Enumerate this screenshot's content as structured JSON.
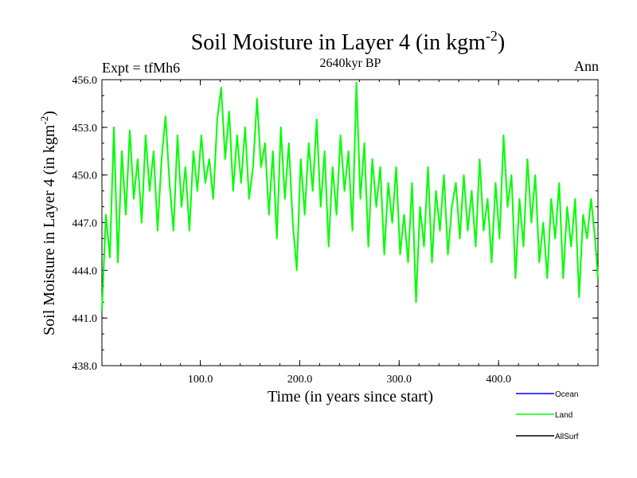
{
  "chart_data": {
    "type": "line",
    "title_main": "Soil Moisture in Layer 4 (in kgm",
    "title_exp": "-2",
    "title_close": ")",
    "subtitle_left": "Expt = tfMh6",
    "subtitle_center": "2640kyr BP",
    "subtitle_right": "Ann",
    "xlabel": "Time (in years since start)",
    "ylabel_main": "Soil Moisture in Layer 4 (in kgm",
    "ylabel_exp": "-2",
    "ylabel_close": ")",
    "xlim": [
      1,
      500
    ],
    "ylim": [
      438.0,
      456.0
    ],
    "xticks": [
      100,
      200,
      300,
      400
    ],
    "xtick_labels": [
      "100.0",
      "200.0",
      "300.0",
      "400.0"
    ],
    "yticks": [
      438,
      441,
      444,
      447,
      450,
      453,
      456
    ],
    "ytick_labels": [
      "438.0",
      "441.0",
      "444.0",
      "447.0",
      "450.0",
      "453.0",
      "456.0"
    ],
    "legend": [
      {
        "name": "Ocean",
        "color": "#0000ff"
      },
      {
        "name": "Land",
        "color": "#00ff00"
      },
      {
        "name": "AllSurf",
        "color": "#000000"
      }
    ],
    "series": [
      {
        "name": "Land",
        "color": "#00ff00",
        "x": [
          1,
          5,
          9,
          13,
          17,
          21,
          25,
          29,
          33,
          37,
          41,
          45,
          49,
          53,
          57,
          61,
          65,
          69,
          73,
          77,
          81,
          85,
          89,
          93,
          97,
          101,
          105,
          109,
          113,
          117,
          121,
          125,
          129,
          133,
          137,
          141,
          145,
          149,
          153,
          157,
          161,
          165,
          169,
          173,
          177,
          181,
          185,
          189,
          193,
          197,
          201,
          205,
          209,
          213,
          217,
          221,
          225,
          229,
          233,
          237,
          241,
          245,
          249,
          253,
          257,
          261,
          265,
          269,
          273,
          277,
          281,
          285,
          289,
          293,
          297,
          301,
          305,
          309,
          313,
          317,
          321,
          325,
          329,
          333,
          337,
          341,
          345,
          349,
          353,
          357,
          361,
          365,
          369,
          373,
          377,
          381,
          385,
          389,
          393,
          397,
          401,
          405,
          409,
          413,
          417,
          421,
          425,
          429,
          433,
          437,
          441,
          445,
          449,
          453,
          457,
          461,
          465,
          469,
          473,
          477,
          481,
          485,
          489,
          493,
          497,
          500
        ],
        "values": [
          441.5,
          447.5,
          444.8,
          453.0,
          444.5,
          451.5,
          447.5,
          452.8,
          448.5,
          451.0,
          447.0,
          452.5,
          449.0,
          451.5,
          446.5,
          451.0,
          453.7,
          449.5,
          446.5,
          452.5,
          448.0,
          450.5,
          446.5,
          451.5,
          449.0,
          452.5,
          449.5,
          451.0,
          448.5,
          453.5,
          455.5,
          451.0,
          454.0,
          449.0,
          452.5,
          449.5,
          453.0,
          448.5,
          450.5,
          454.8,
          450.5,
          452.0,
          447.5,
          451.5,
          446.0,
          453.0,
          448.5,
          452.0,
          447.0,
          444.0,
          451.0,
          447.5,
          452.0,
          449.0,
          453.5,
          448.0,
          451.5,
          445.5,
          450.5,
          447.5,
          452.5,
          449.0,
          451.5,
          446.5,
          455.8,
          448.5,
          452.0,
          445.5,
          451.0,
          448.0,
          450.5,
          445.0,
          449.5,
          447.0,
          450.5,
          445.0,
          447.5,
          444.5,
          449.5,
          442.0,
          448.0,
          445.5,
          450.5,
          444.5,
          449.0,
          446.5,
          450.0,
          445.0,
          448.0,
          449.5,
          446.0,
          450.0,
          446.5,
          449.0,
          445.5,
          451.0,
          446.5,
          448.5,
          444.5,
          449.5,
          446.0,
          452.5,
          448.0,
          450.0,
          443.5,
          448.5,
          445.5,
          451.0,
          447.0,
          450.0,
          444.5,
          447.0,
          443.5,
          448.5,
          446.0,
          449.5,
          443.5,
          448.0,
          445.5,
          448.5,
          442.3,
          447.5,
          446.0,
          448.5,
          446.0,
          443.5
        ]
      }
    ]
  }
}
